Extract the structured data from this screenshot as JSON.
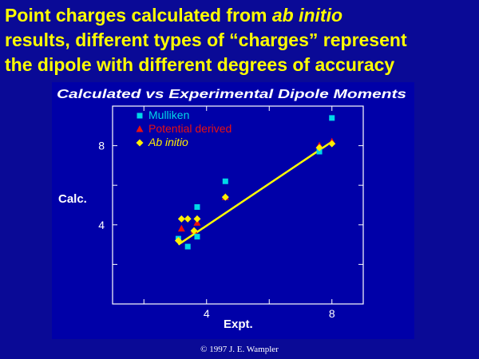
{
  "slide": {
    "title_line1_prefix": "Point charges  calculated from ",
    "title_line1_italic": "ab initio",
    "title_line2": "results, different types of “charges” represent",
    "title_line3": "the dipole with different degrees of accuracy",
    "copyright": "© 1997 J. E. Wampler",
    "text_color": "#ffff00",
    "background_color": "#0a0a96"
  },
  "chart_data": {
    "type": "scatter",
    "title": "Calculated vs Experimental Dipole Moments",
    "xlabel": "Expt.",
    "ylabel": "Calc.",
    "xlim": [
      1.0,
      9.0
    ],
    "ylim": [
      0.0,
      10.0
    ],
    "x_ticks": [
      4,
      8
    ],
    "y_ticks": [
      4,
      8
    ],
    "grid": false,
    "legend_position": "top-left",
    "axis_color": "#ffffff",
    "series": [
      {
        "name": "Mulliken",
        "marker": "square",
        "color": "#00d8e8",
        "x": [
          3.1,
          3.4,
          3.7,
          3.7,
          4.6,
          7.6,
          8.0
        ],
        "y": [
          3.3,
          2.9,
          4.9,
          3.4,
          6.2,
          7.7,
          9.4
        ]
      },
      {
        "name": "Potential derived",
        "marker": "triangle",
        "color": "#e81010",
        "x": [
          3.2,
          3.6,
          3.7,
          4.6,
          7.6,
          8.0
        ],
        "y": [
          3.8,
          3.7,
          4.1,
          5.4,
          8.0,
          8.2
        ]
      },
      {
        "name": "Ab initio",
        "marker": "diamond",
        "color": "#ffee00",
        "x": [
          3.1,
          3.2,
          3.4,
          3.6,
          3.7,
          4.6,
          7.6,
          8.0
        ],
        "y": [
          3.2,
          4.3,
          4.3,
          3.7,
          4.3,
          5.4,
          7.9,
          8.1
        ]
      }
    ],
    "fit_line": {
      "color": "#ffff00",
      "x": [
        3.1,
        8.0
      ],
      "y": [
        3.0,
        8.2
      ]
    }
  }
}
